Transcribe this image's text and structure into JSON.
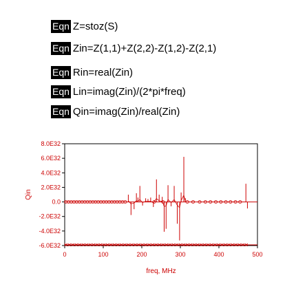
{
  "equations": [
    {
      "badge": "Eqn",
      "text": "Z=stoz(S)"
    },
    {
      "badge": "Eqn",
      "text": "Zin=Z(1,1)+Z(2,2)-Z(1,2)-Z(2,1)"
    },
    {
      "badge": "Eqn",
      "text": "Rin=real(Zin)"
    },
    {
      "badge": "Eqn",
      "text": "Lin=imag(Zin)/(2*pi*freq)"
    },
    {
      "badge": "Eqn",
      "text": "Qin=imag(Zin)/real(Zin)"
    }
  ],
  "colors": {
    "trace": "#cc0000",
    "axis": "#000000",
    "badge_bg": "#000000",
    "badge_fg": "#ffffff"
  },
  "chart_data": {
    "type": "line",
    "title": "",
    "xlabel": "freq, MHz",
    "ylabel": "Qin",
    "xlim": [
      0,
      500
    ],
    "ylim": [
      -6e+32,
      8e+32
    ],
    "grid": false,
    "xticks": [
      0,
      100,
      200,
      300,
      400,
      500
    ],
    "xtick_labels": [
      "0",
      "100",
      "200",
      "300",
      "400",
      "500"
    ],
    "yticks": [
      -6e+32,
      -4e+32,
      -2e+32,
      0,
      2e+32,
      4e+32,
      6e+32,
      8e+32
    ],
    "ytick_labels": [
      "-6.0E32",
      "-4.0E32",
      "-2.0E32",
      "0.0",
      "2.0E32",
      "4.0E32",
      "6.0E32",
      "8.0E32"
    ],
    "series": [
      {
        "spikes": [
          {
            "x": 165,
            "y": 1e+32
          },
          {
            "x": 172,
            "y": -1.8e+32
          },
          {
            "x": 180,
            "y": -1e+32
          },
          {
            "x": 186,
            "y": 1.2e+32
          },
          {
            "x": 190,
            "y": 6e+31
          },
          {
            "x": 195,
            "y": 2.2e+32
          },
          {
            "x": 202,
            "y": -5e+31
          },
          {
            "x": 210,
            "y": 5e+31
          },
          {
            "x": 216,
            "y": 4e+31
          },
          {
            "x": 223,
            "y": 6e+31
          },
          {
            "x": 230,
            "y": -7e+31
          },
          {
            "x": 238,
            "y": 3.1e+32
          },
          {
            "x": 245,
            "y": 1e+32
          },
          {
            "x": 253,
            "y": 7e+31
          },
          {
            "x": 258,
            "y": -4.1e+32
          },
          {
            "x": 263,
            "y": -3.7e+32
          },
          {
            "x": 268,
            "y": 2.3e+32
          },
          {
            "x": 276,
            "y": -6e+31
          },
          {
            "x": 284,
            "y": 2.2e+32
          },
          {
            "x": 292,
            "y": -3e+32
          },
          {
            "x": 298,
            "y": -5.3e+32
          },
          {
            "x": 302,
            "y": 1.3e+32
          },
          {
            "x": 309,
            "y": 6.2e+32
          },
          {
            "x": 313,
            "y": 5e+31
          },
          {
            "x": 470,
            "y": 2.5e+32
          },
          {
            "x": 474,
            "y": -9e+31
          }
        ],
        "baseline_markers_x": [
          3,
          10,
          17,
          24,
          31,
          38,
          45,
          52,
          59,
          66,
          73,
          80,
          87,
          94,
          101,
          108,
          115,
          122,
          129,
          136,
          143,
          150,
          157,
          232,
          255,
          318,
          333,
          350,
          365,
          378,
          392,
          405,
          418,
          430,
          443,
          455
        ],
        "floor_y": -5.9e+32,
        "floor_markers_x": [
          3,
          12,
          21,
          30,
          39,
          48,
          57,
          66,
          75,
          84,
          93,
          102,
          111,
          120,
          129,
          138,
          147,
          156,
          165,
          174,
          183,
          192,
          201,
          210,
          219,
          228,
          237,
          246,
          255,
          264,
          273,
          282,
          291,
          300,
          309,
          318,
          327,
          336,
          345,
          354,
          363,
          372,
          381,
          390,
          399,
          408,
          417,
          426,
          435,
          444,
          453,
          462,
          471
        ]
      }
    ]
  }
}
